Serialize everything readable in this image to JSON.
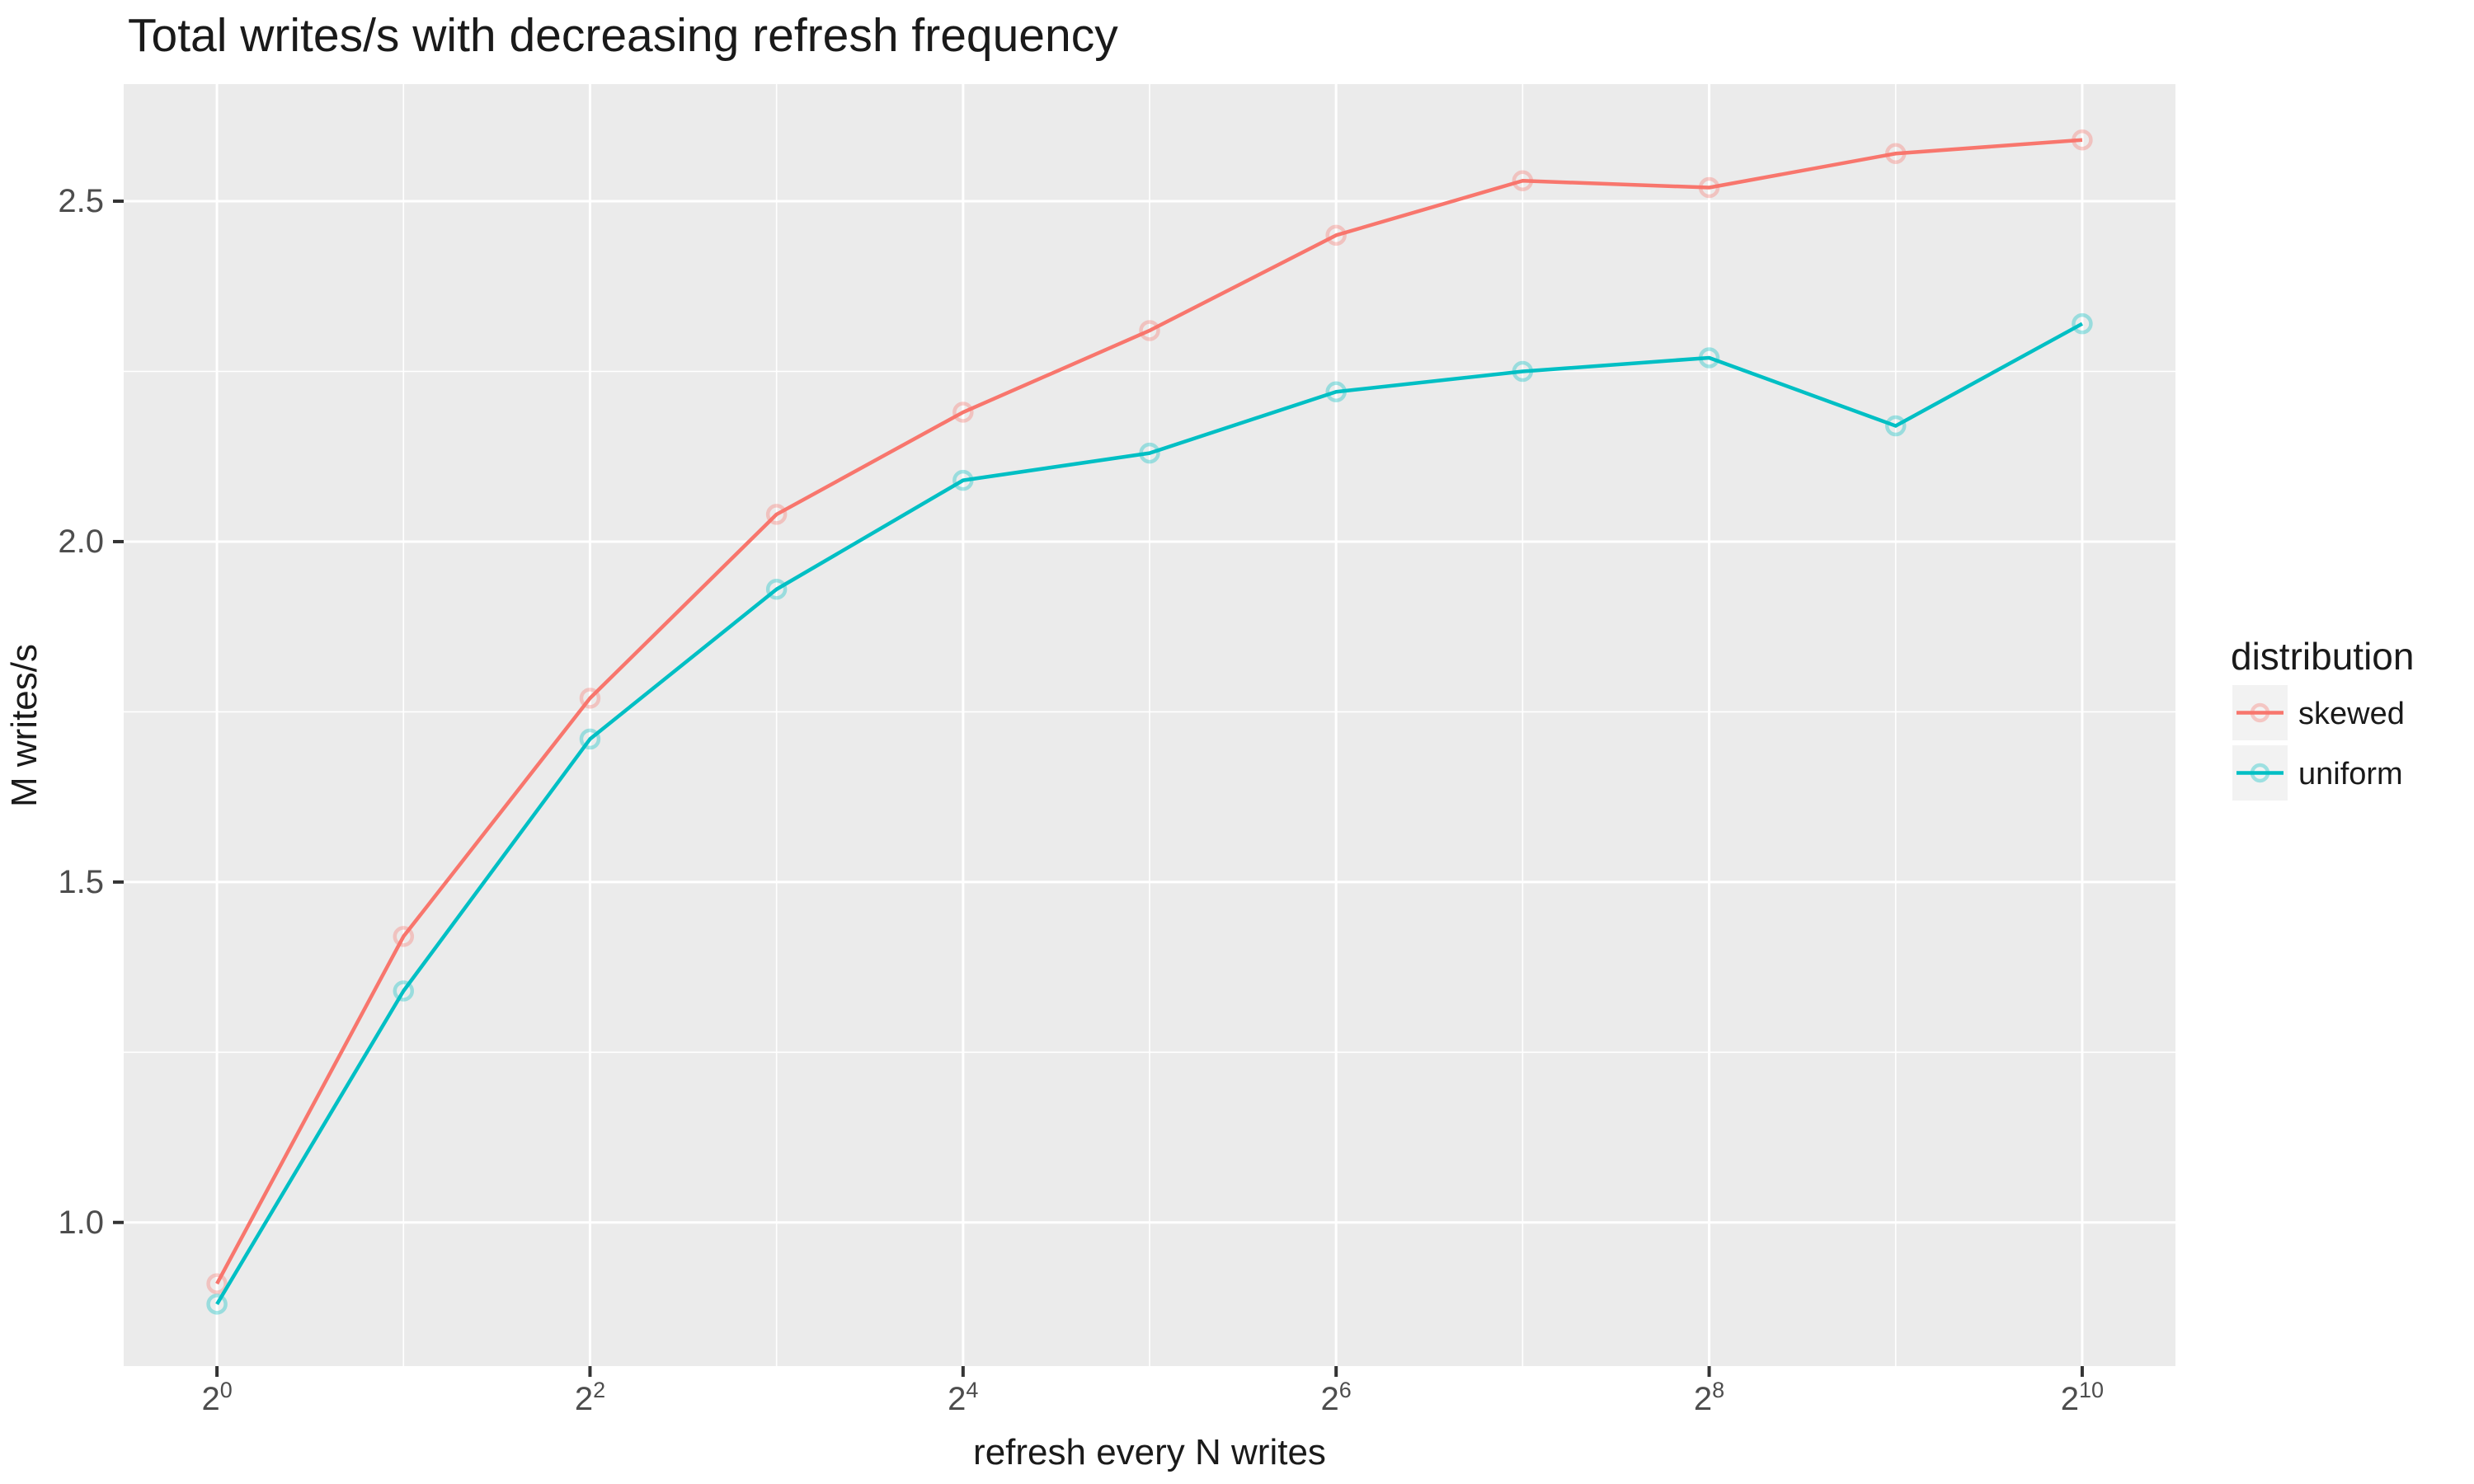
{
  "chart_data": {
    "type": "line",
    "title": "Total writes/s with decreasing refresh frequency",
    "xlabel": "refresh every N writes",
    "ylabel": "M writes/s",
    "x_scale": "log2",
    "x_values": [
      1,
      2,
      4,
      8,
      16,
      32,
      64,
      128,
      256,
      512,
      1024
    ],
    "x_exponents": [
      0,
      1,
      2,
      3,
      4,
      5,
      6,
      7,
      8,
      9,
      10
    ],
    "x_tick_exponents": [
      0,
      2,
      4,
      6,
      8,
      10
    ],
    "x_tick_base": "2",
    "y_tick_labels": [
      "1.0",
      "1.5",
      "2.0",
      "2.5"
    ],
    "xlim_log2": [
      -0.5,
      10.5
    ],
    "ylim": [
      0.789,
      2.672
    ],
    "grid": true,
    "legend": {
      "title": "distribution",
      "position": "right"
    },
    "series": [
      {
        "name": "skewed",
        "color": "#F8766D",
        "values": [
          0.91,
          1.42,
          1.77,
          2.04,
          2.19,
          2.31,
          2.45,
          2.53,
          2.52,
          2.57,
          2.59
        ]
      },
      {
        "name": "uniform",
        "color": "#00BFC4",
        "values": [
          0.88,
          1.34,
          1.71,
          1.93,
          2.09,
          2.13,
          2.22,
          2.25,
          2.27,
          2.17,
          2.32
        ]
      }
    ],
    "colors": {
      "panel_background": "#EBEBEB",
      "gridline": "#FFFFFF",
      "tick_mark": "#333333",
      "tick_text": "#4D4D4D",
      "legend_key_background": "#F2F2F2"
    }
  }
}
